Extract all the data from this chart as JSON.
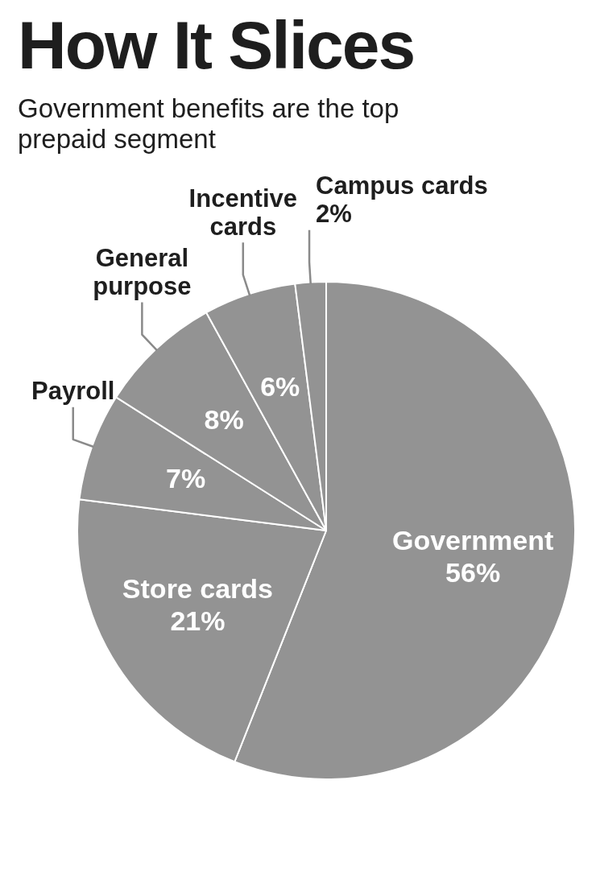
{
  "chart_data": {
    "type": "pie",
    "title": "How It Slices",
    "subtitle": "Government benefits are the top prepaid segment",
    "categories": [
      "Government",
      "Store cards",
      "Payroll",
      "General purpose",
      "Incentive cards",
      "Campus cards"
    ],
    "values": [
      56,
      21,
      7,
      8,
      6,
      2
    ],
    "value_labels": [
      "56%",
      "21%",
      "7%",
      "8%",
      "6%",
      "2%"
    ],
    "colors": [
      "#939393",
      "#939393",
      "#939393",
      "#939393",
      "#939393",
      "#939393"
    ]
  }
}
